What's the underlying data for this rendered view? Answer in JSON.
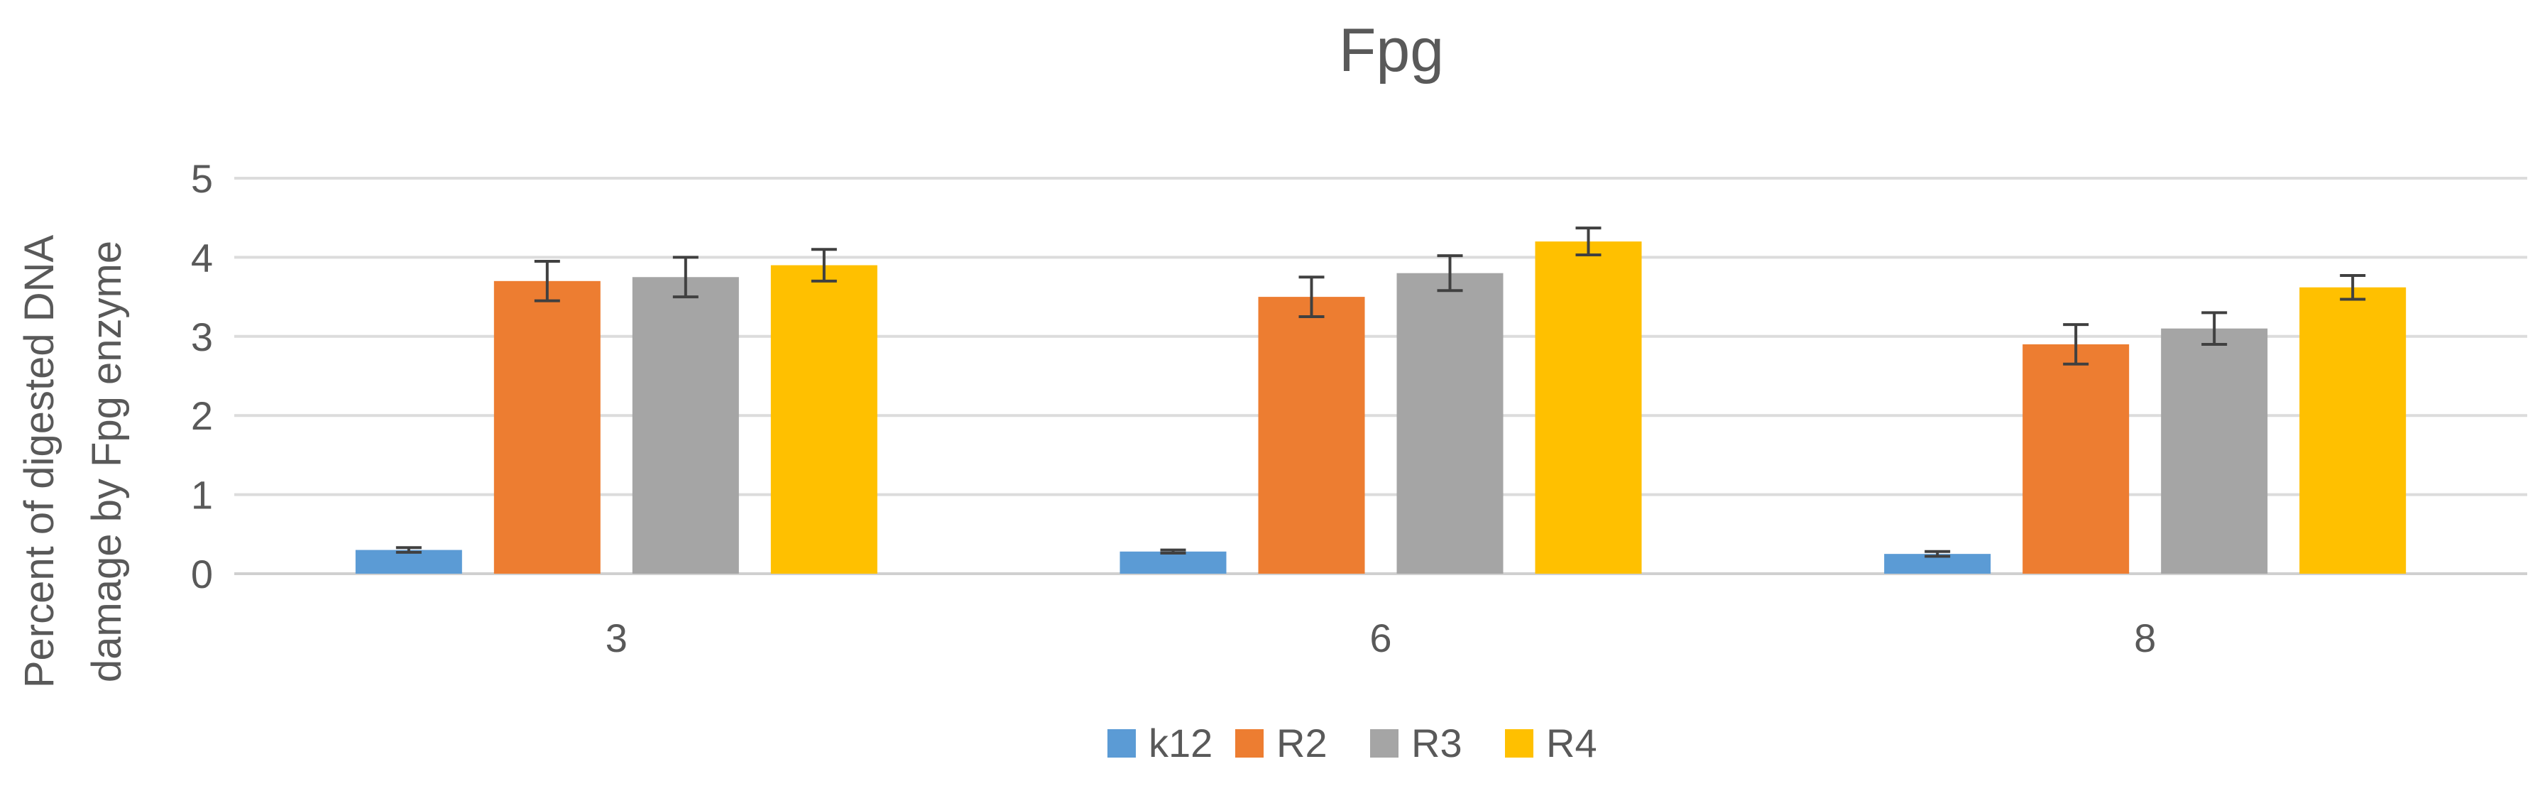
{
  "chart_data": {
    "type": "bar",
    "title": "Fpg",
    "ylabel_line1": "Percent of digested DNA",
    "ylabel_line2": "damage by Fpg enzyme",
    "xlabel": "",
    "categories": [
      "3",
      "6",
      "8"
    ],
    "ylim": [
      0,
      5
    ],
    "yticks": [
      0,
      1,
      2,
      3,
      4,
      5
    ],
    "grid": true,
    "legend_position": "bottom",
    "series": [
      {
        "name": "k12",
        "color": "#5B9BD5",
        "values": [
          0.3,
          0.28,
          0.25
        ],
        "errors": [
          0.03,
          0.02,
          0.03
        ]
      },
      {
        "name": "R2",
        "color": "#ED7D31",
        "values": [
          3.7,
          3.5,
          2.9
        ],
        "errors": [
          0.25,
          0.25,
          0.25
        ]
      },
      {
        "name": "R3",
        "color": "#A5A5A5",
        "values": [
          3.75,
          3.8,
          3.1
        ],
        "errors": [
          0.25,
          0.22,
          0.2
        ]
      },
      {
        "name": "R4",
        "color": "#FFC000",
        "values": [
          3.9,
          4.2,
          3.62
        ],
        "errors": [
          0.2,
          0.17,
          0.15
        ]
      }
    ]
  }
}
